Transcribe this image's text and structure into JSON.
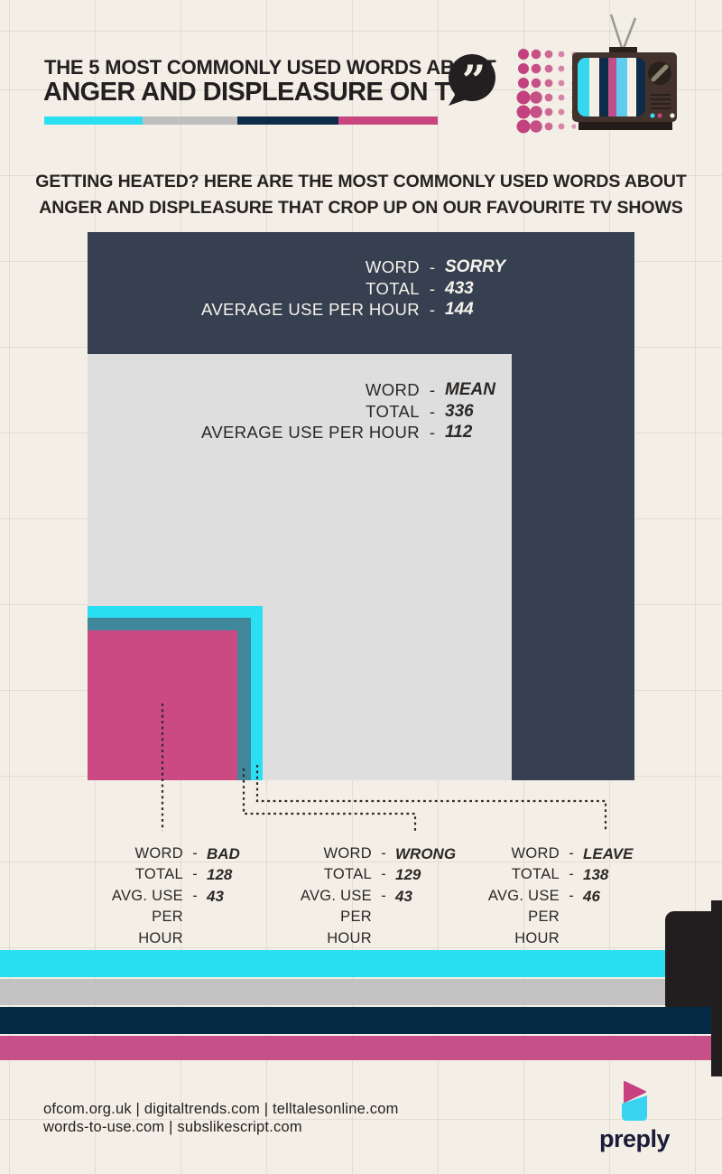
{
  "colors": {
    "bg": "#F3EFE6",
    "ink": "#231F20",
    "navy": "#364050",
    "graysq": "#DEDEDE",
    "cyan": "#2BDFF2",
    "teal": "#41879C",
    "pinksq": "#CB4A84",
    "black": "#221E1F",
    "dotpink": "#C2417E"
  },
  "header": {
    "title_line1": "THE 5 MOST COMMONLY USED WORDS ABOUT",
    "title_line2": "ANGER AND DISPLEASURE ON TV",
    "quote_mark": "”"
  },
  "subtitle": {
    "line1": "GETTING HEATED? HERE ARE THE MOST COMMONLY USED WORDS ABOUT",
    "line2": "ANGER AND DISPLEASURE THAT CROP UP ON OUR FAVOURITE TV SHOWS"
  },
  "labels": {
    "word": "WORD",
    "total": "TOTAL",
    "avg_full": "AVERAGE USE PER HOUR",
    "avg_short": "AVG. USE",
    "per_hour": "PER HOUR",
    "dash": "-"
  },
  "squares": {
    "sorry": {
      "word": "SORRY",
      "total": "433",
      "avg": "144"
    },
    "mean": {
      "word": "MEAN",
      "total": "336",
      "avg": "112"
    },
    "leave": {
      "word": "LEAVE",
      "total": "138",
      "avg": "46"
    },
    "wrong": {
      "word": "WRONG",
      "total": "129",
      "avg": "43"
    },
    "bad": {
      "word": "BAD",
      "total": "128",
      "avg": "43"
    }
  },
  "chart_data": {
    "type": "area",
    "variant": "nested-proportional-squares",
    "title": "The 5 most commonly used words about anger and displeasure on TV",
    "categories": [
      "SORRY",
      "MEAN",
      "LEAVE",
      "WRONG",
      "BAD"
    ],
    "series": [
      {
        "name": "TOTAL",
        "values": [
          433,
          336,
          138,
          129,
          128
        ]
      },
      {
        "name": "AVERAGE USE PER HOUR",
        "values": [
          144,
          112,
          46,
          43,
          43
        ]
      }
    ],
    "colors_by_category": {
      "SORRY": "#364050",
      "MEAN": "#DEDEDE",
      "LEAVE": "#2BDFF2",
      "WRONG": "#41879C",
      "BAD": "#CB4A84"
    },
    "legend_position": "none",
    "grid": "off"
  },
  "footer": {
    "sources_line1": "ofcom.org.uk | digitaltrends.com | telltalesonline.com",
    "sources_line2": "words-to-use.com | subslikescript.com",
    "brand": "preply"
  }
}
